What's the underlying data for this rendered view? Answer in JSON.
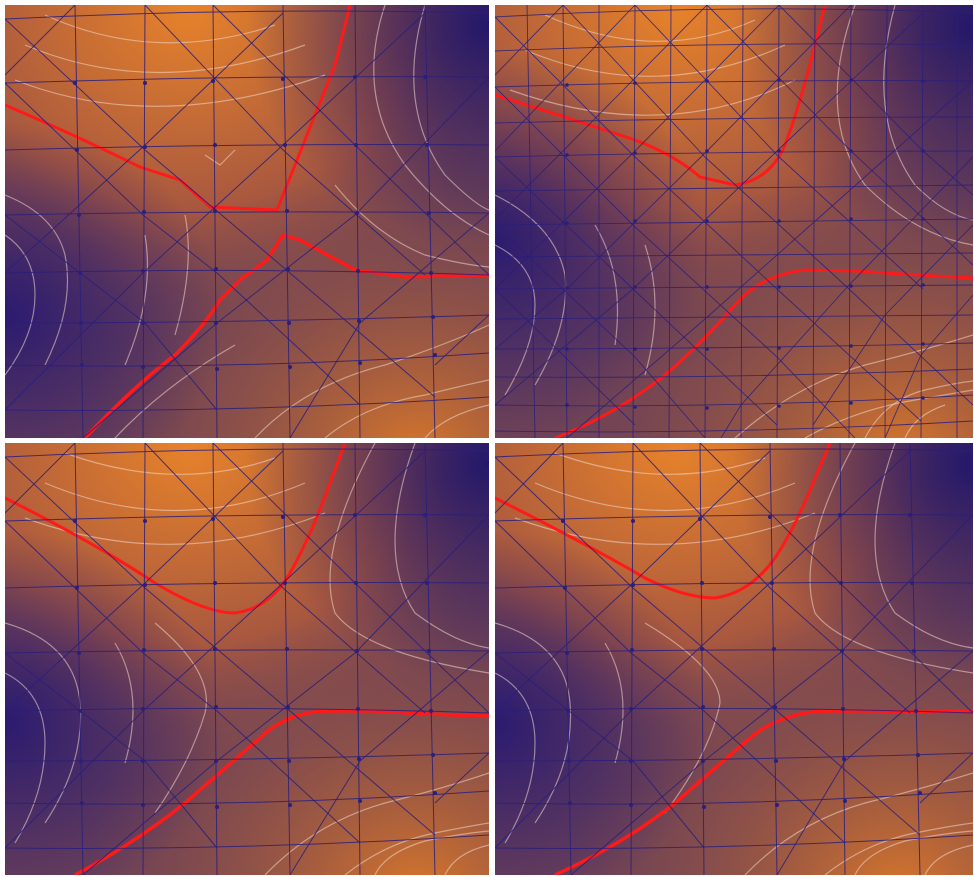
{
  "figure": {
    "colors": {
      "warm": "#e07b24",
      "cool": "#2a1a6e",
      "mesh_edge": "#2b1f7a",
      "isoline": "#f0d9cc",
      "critical_isoline": "#ff1a1a"
    },
    "panels": [
      {
        "id": "top-left",
        "mesh": "coarse",
        "artifact": "jagged"
      },
      {
        "id": "top-right",
        "mesh": "fine",
        "artifact": "smooth"
      },
      {
        "id": "bottom-left",
        "mesh": "coarse",
        "artifact": "smooth"
      },
      {
        "id": "bottom-right",
        "mesh": "coarse",
        "artifact": "smooth"
      }
    ]
  }
}
